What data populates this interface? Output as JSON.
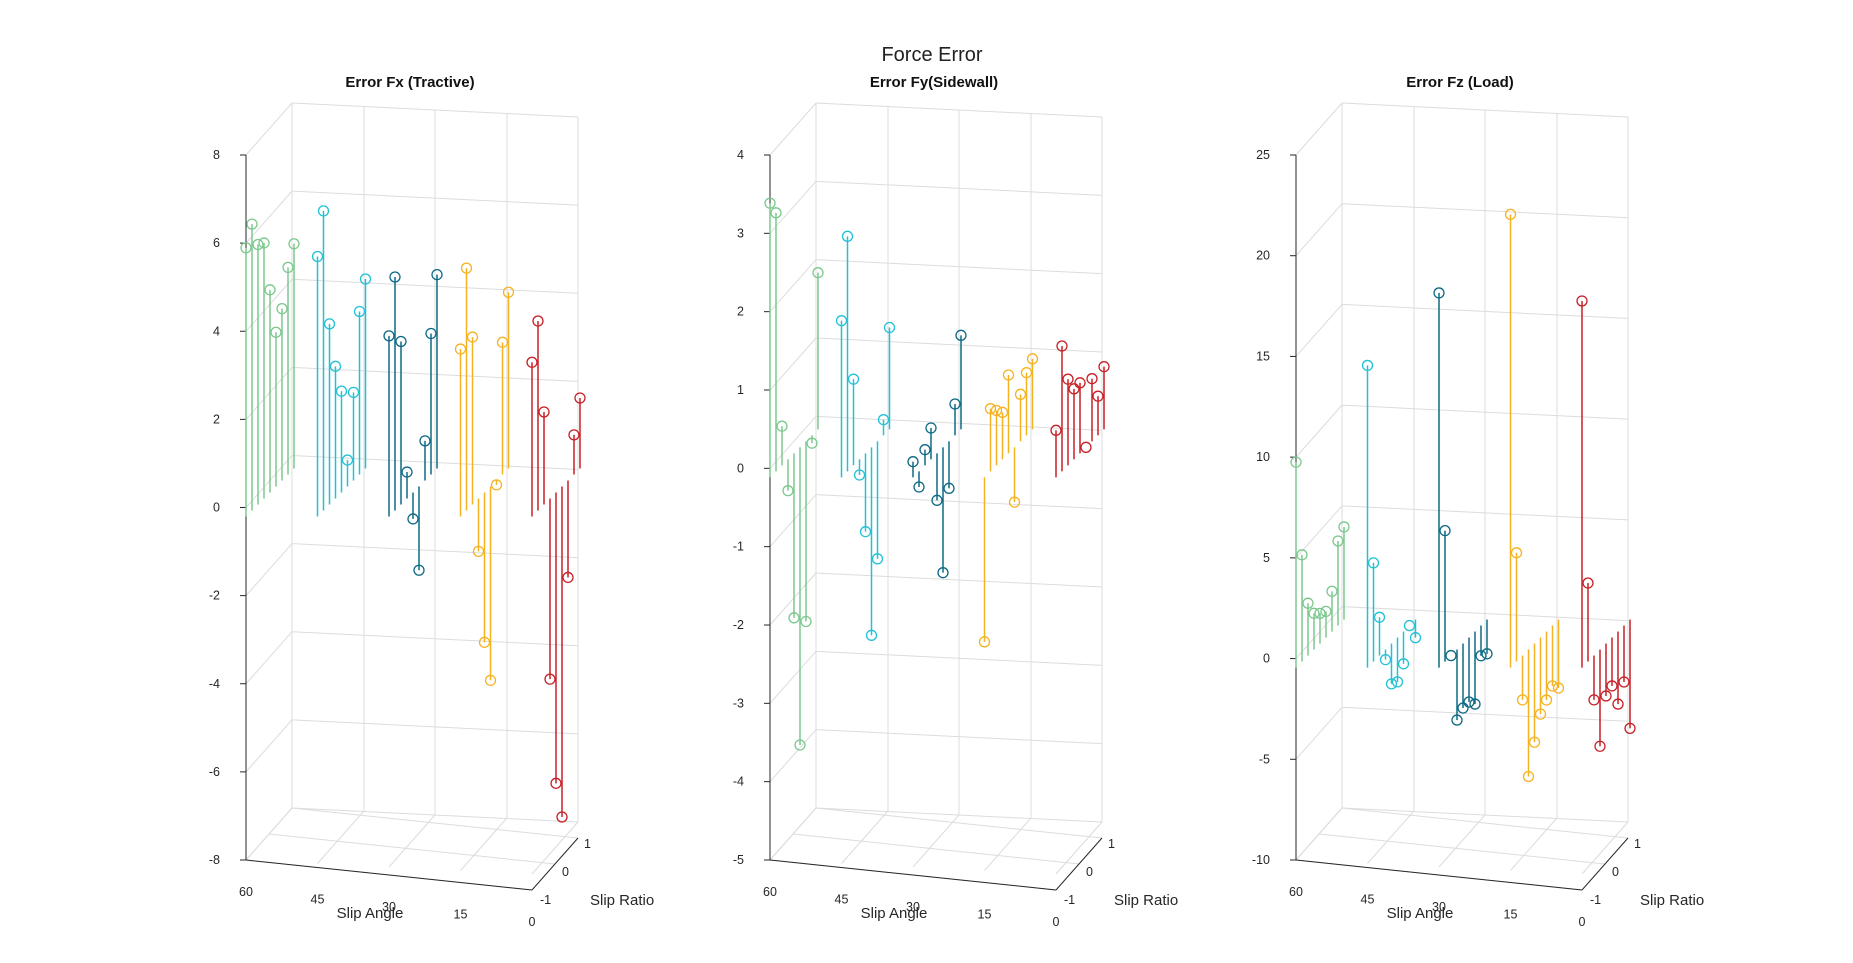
{
  "figure": {
    "title": "Force Error"
  },
  "colors": {
    "sa60": "#7cc88e",
    "sa45": "#22c1d6",
    "sa30": "#0e6a85",
    "sa15": "#f5b321",
    "sa0": "#c72027"
  },
  "chart_data": [
    {
      "type": "stem3",
      "title": "Error Fx (Tractive)",
      "xlabel": "Slip Angle",
      "ylabel": "Slip Ratio",
      "zlim": [
        -8,
        8
      ],
      "zticks": [
        "8",
        "6",
        "4",
        "2",
        "0",
        "-2",
        "-4",
        "-6",
        "-8"
      ],
      "xticks": [
        "60",
        "45",
        "30",
        "15",
        "0"
      ],
      "yticks": [
        "-1",
        "0",
        "1"
      ],
      "series": [
        {
          "slip_angle": 60,
          "color": "sa60",
          "values": [
            6.1,
            6.5,
            5.9,
            5.8,
            4.6,
            3.5,
            3.9,
            4.7,
            5.1
          ]
        },
        {
          "slip_angle": 45,
          "color": "sa45",
          "values": [
            5.9,
            6.8,
            4.1,
            3.0,
            2.3,
            0.6,
            2.0,
            3.7,
            4.3
          ]
        },
        {
          "slip_angle": 30,
          "color": "sa30",
          "values": [
            4.1,
            5.3,
            3.7,
            0.6,
            -0.6,
            -1.9,
            0.9,
            3.2,
            4.4
          ]
        },
        {
          "slip_angle": 15,
          "color": "sa15",
          "values": [
            3.8,
            5.5,
            3.8,
            -1.2,
            -3.4,
            -4.4,
            -0.1,
            3.0,
            4.0
          ]
        },
        {
          "slip_angle": 0,
          "color": "sa0",
          "values": [
            3.5,
            4.3,
            2.1,
            -4.1,
            -6.6,
            -7.5,
            -2.2,
            0.9,
            1.6
          ]
        }
      ]
    },
    {
      "type": "stem3",
      "title": "Error Fy(Sidewall)",
      "xlabel": "Slip Angle",
      "ylabel": "Slip Ratio",
      "zlim": [
        -5,
        4
      ],
      "zticks": [
        "4",
        "3",
        "2",
        "1",
        "0",
        "-1",
        "-2",
        "-3",
        "-4",
        "-5"
      ],
      "xticks": [
        "60",
        "45",
        "30",
        "15",
        "0"
      ],
      "yticks": [
        "-1",
        "0",
        "1"
      ],
      "series": [
        {
          "slip_angle": 60,
          "color": "sa60",
          "values": [
            3.5,
            3.3,
            0.5,
            -0.4,
            -2.1,
            -3.8,
            -2.3,
            -0.1,
            2.0
          ]
        },
        {
          "slip_angle": 45,
          "color": "sa45",
          "values": [
            2.0,
            3.0,
            1.1,
            -0.2,
            -1.0,
            -2.4,
            -1.5,
            0.2,
            1.3
          ]
        },
        {
          "slip_angle": 30,
          "color": "sa30",
          "values": [
            0.2,
            -0.2,
            0.2,
            0.4,
            -0.6,
            -1.6,
            -0.6,
            0.4,
            1.2
          ]
        },
        {
          "slip_angle": 15,
          "color": "sa15",
          "values": [
            -2.1,
            0.8,
            0.7,
            0.6,
            1.0,
            -0.7,
            0.6,
            0.8,
            0.9
          ]
        },
        {
          "slip_angle": 0,
          "color": "sa0",
          "values": [
            0.6,
            1.6,
            1.1,
            0.9,
            0.9,
            0.0,
            0.8,
            0.5,
            0.8
          ]
        }
      ]
    },
    {
      "type": "stem3",
      "title": "Error Fz (Load)",
      "xlabel": "Slip Angle",
      "ylabel": "Slip Ratio",
      "zlim": [
        -10,
        25
      ],
      "zticks": [
        "25",
        "20",
        "15",
        "10",
        "5",
        "0",
        "-5",
        "-10"
      ],
      "xticks": [
        "60",
        "45",
        "30",
        "15",
        "0"
      ],
      "yticks": [
        "-1",
        "0",
        "1"
      ],
      "series": [
        {
          "slip_angle": 60,
          "color": "sa60",
          "values": [
            10.2,
            5.3,
            2.6,
            1.8,
            1.5,
            1.3,
            2.0,
            4.2,
            4.6
          ]
        },
        {
          "slip_angle": 45,
          "color": "sa45",
          "values": [
            15.0,
            4.9,
            1.9,
            -0.5,
            -2.0,
            -2.2,
            -1.6,
            0.0,
            -0.9
          ]
        },
        {
          "slip_angle": 30,
          "color": "sa30",
          "values": [
            18.6,
            6.5,
            0.0,
            -3.5,
            -3.2,
            -3.2,
            -3.6,
            -1.5,
            -1.7
          ]
        },
        {
          "slip_angle": 15,
          "color": "sa15",
          "values": [
            22.5,
            5.4,
            -2.2,
            -6.3,
            -4.9,
            -3.8,
            -3.4,
            -3.0,
            -3.4
          ]
        },
        {
          "slip_angle": 0,
          "color": "sa0",
          "values": [
            18.2,
            3.9,
            -2.2,
            -4.8,
            -2.6,
            -2.4,
            -3.6,
            -2.8,
            -5.4
          ]
        }
      ]
    }
  ]
}
